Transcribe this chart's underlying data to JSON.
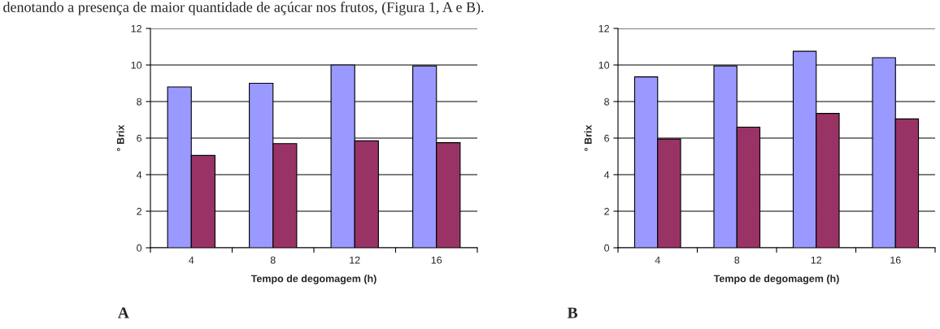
{
  "chart_data": [
    {
      "type": "bar",
      "xlabel": "Tempo de degomagem (h)",
      "ylabel": "° Brix",
      "categories": [
        "4",
        "8",
        "12",
        "16"
      ],
      "series": [
        {
          "color": "#9999ff",
          "values": [
            8.8,
            9.0,
            10.0,
            9.95
          ]
        },
        {
          "color": "#993366",
          "values": [
            5.05,
            5.7,
            5.85,
            5.75
          ]
        }
      ],
      "ylim": [
        0,
        12
      ],
      "yticks": [
        0,
        2,
        4,
        6,
        8,
        10,
        12
      ],
      "grid": "y",
      "legend": false,
      "annotations": [
        "denotando a presença de maior quantidade de açúcar nos frutos, (Figura 1, A e B).",
        "A"
      ]
    },
    {
      "type": "bar",
      "xlabel": "Tempo de degomagem (h)",
      "ylabel": "° Brix",
      "categories": [
        "4",
        "8",
        "12",
        "16"
      ],
      "series": [
        {
          "color": "#9999ff",
          "values": [
            9.35,
            9.95,
            10.75,
            10.4
          ]
        },
        {
          "color": "#993366",
          "values": [
            5.95,
            6.6,
            7.35,
            7.05
          ]
        }
      ],
      "ylim": [
        0,
        12
      ],
      "yticks": [
        0,
        2,
        4,
        6,
        8,
        10,
        12
      ],
      "grid": "y",
      "legend": false,
      "annotations": [
        "B"
      ]
    }
  ]
}
